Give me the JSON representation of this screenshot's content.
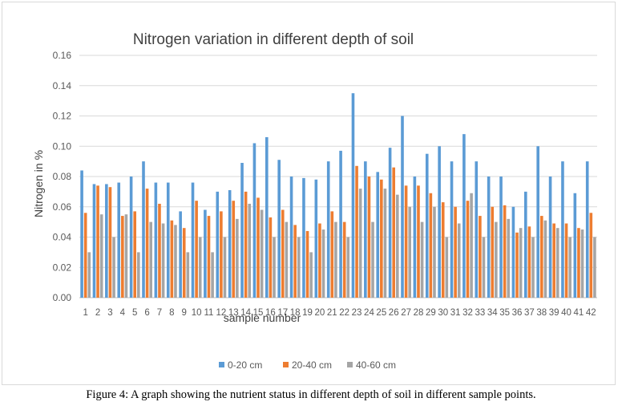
{
  "caption": "Figure 4: A graph showing the nutrient status in different depth of soil in different sample points.",
  "chart_data": {
    "type": "bar",
    "title": "Nitrogen variation in different depth of soil",
    "xlabel": "sample number",
    "ylabel": "Nitrogen in %",
    "ylim": [
      0,
      0.16
    ],
    "yticks": [
      "0.00",
      "0.02",
      "0.04",
      "0.06",
      "0.08",
      "0.10",
      "0.12",
      "0.14",
      "0.16"
    ],
    "grid": true,
    "legend_position": "bottom",
    "categories": [
      "1",
      "2",
      "3",
      "4",
      "5",
      "6",
      "7",
      "8",
      "9",
      "10",
      "11",
      "12",
      "13",
      "14",
      "15",
      "16",
      "17",
      "18",
      "19",
      "20",
      "21",
      "22",
      "23",
      "24",
      "25",
      "26",
      "27",
      "28",
      "29",
      "30",
      "31",
      "32",
      "33",
      "34",
      "35",
      "36",
      "37",
      "38",
      "39",
      "40",
      "41",
      "42"
    ],
    "series": [
      {
        "name": "0-20 cm",
        "color": "#5b9bd5",
        "values": [
          0.084,
          0.075,
          0.075,
          0.076,
          0.08,
          0.09,
          0.076,
          0.076,
          0.057,
          0.076,
          0.058,
          0.07,
          0.071,
          0.089,
          0.102,
          0.106,
          0.091,
          0.08,
          0.079,
          0.078,
          0.09,
          0.097,
          0.135,
          0.09,
          0.083,
          0.099,
          0.12,
          0.08,
          0.095,
          0.1,
          0.09,
          0.108,
          0.09,
          0.08,
          0.08,
          0.06,
          0.07,
          0.1,
          0.08,
          0.09,
          0.069,
          0.09
        ]
      },
      {
        "name": "20-40 cm",
        "color": "#ed7d31",
        "values": [
          0.056,
          0.074,
          0.073,
          0.054,
          0.057,
          0.072,
          0.062,
          0.051,
          0.046,
          0.064,
          0.054,
          0.057,
          0.064,
          0.07,
          0.066,
          0.053,
          0.058,
          0.048,
          0.044,
          0.049,
          0.057,
          0.05,
          0.087,
          0.08,
          0.078,
          0.086,
          0.074,
          0.074,
          0.069,
          0.063,
          0.06,
          0.064,
          0.054,
          0.06,
          0.061,
          0.043,
          0.047,
          0.054,
          0.049,
          0.049,
          0.046,
          0.056
        ]
      },
      {
        "name": "40-60 cm",
        "color": "#a5a5a5",
        "values": [
          0.03,
          0.055,
          0.04,
          0.055,
          0.03,
          0.05,
          0.049,
          0.048,
          0.03,
          0.04,
          0.03,
          0.04,
          0.052,
          0.062,
          0.058,
          0.04,
          0.05,
          0.04,
          0.03,
          0.045,
          0.05,
          0.04,
          0.072,
          0.05,
          0.072,
          0.068,
          0.06,
          0.05,
          0.06,
          0.04,
          0.049,
          0.069,
          0.04,
          0.05,
          0.052,
          0.046,
          0.04,
          0.051,
          0.046,
          0.04,
          0.045,
          0.04
        ]
      }
    ]
  }
}
